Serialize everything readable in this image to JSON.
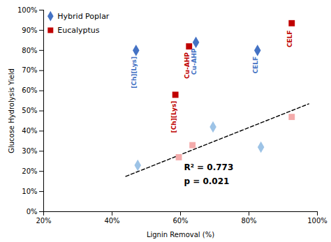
{
  "chart_data": {
    "type": "scatter",
    "xlabel": "Lignin Removal (%)",
    "ylabel": "Glucose Hydrolysis Yield",
    "xlim": [
      0.2,
      1.0
    ],
    "ylim": [
      0.0,
      1.0
    ],
    "xticks": [
      {
        "value": 0.2,
        "label": "20%"
      },
      {
        "value": 0.4,
        "label": "40%"
      },
      {
        "value": 0.6,
        "label": "60%"
      },
      {
        "value": 0.8,
        "label": "80%"
      },
      {
        "value": 1.0,
        "label": "100%"
      }
    ],
    "yticks": [
      {
        "value": 0.0,
        "label": "0%"
      },
      {
        "value": 0.1,
        "label": "10%"
      },
      {
        "value": 0.2,
        "label": "20%"
      },
      {
        "value": 0.3,
        "label": "30%"
      },
      {
        "value": 0.4,
        "label": "40%"
      },
      {
        "value": 0.5,
        "label": "50%"
      },
      {
        "value": 0.6,
        "label": "60%"
      },
      {
        "value": 0.7,
        "label": "70%"
      },
      {
        "value": 0.8,
        "label": "80%"
      },
      {
        "value": 0.9,
        "label": "90%"
      },
      {
        "value": 1.0,
        "label": "100%"
      }
    ],
    "grid": false,
    "legend": "upper left",
    "series": [
      {
        "name": "Hybrid Poplar",
        "color": "#4472C4",
        "marker": "diamond",
        "x": [
          0.47,
          0.645,
          0.825
        ],
        "values": [
          0.8,
          0.84,
          0.8
        ]
      },
      {
        "color": "#9DC3E6",
        "marker": "diamond",
        "x": [
          0.475,
          0.695,
          0.835
        ],
        "values": [
          0.23,
          0.42,
          0.32
        ]
      },
      {
        "name": "Eucalyptus",
        "color": "#C00000",
        "marker": "square",
        "x": [
          0.585,
          0.625,
          0.925
        ],
        "values": [
          0.58,
          0.82,
          0.935
        ]
      },
      {
        "color": "#F4ABAB",
        "marker": "square",
        "x": [
          0.595,
          0.635,
          0.925
        ],
        "values": [
          0.27,
          0.33,
          0.47
        ]
      },
      {
        "type": "line",
        "color": "black",
        "line_style": "dashed",
        "x": [
          0.44,
          0.975
        ],
        "values": [
          0.175,
          0.535
        ]
      }
    ],
    "annotations": [
      {
        "text": "R² = 0.773",
        "x": 0.61,
        "y": 0.205
      },
      {
        "text": "p = 0.021",
        "x": 0.61,
        "y": 0.135
      }
    ],
    "point_labels": [
      {
        "x": 0.465,
        "y": 0.77,
        "text": "[Ch][Lys]",
        "color": "#4472C4"
      },
      {
        "x": 0.64,
        "y": 0.81,
        "text": "Cu-AHP",
        "color": "#4472C4"
      },
      {
        "x": 0.82,
        "y": 0.77,
        "text": "CELF",
        "color": "#4472C4"
      },
      {
        "x": 0.58,
        "y": 0.55,
        "text": "[Ch][Lys]",
        "color": "#C00000"
      },
      {
        "x": 0.62,
        "y": 0.79,
        "text": "Cu-AHP",
        "color": "#C00000"
      },
      {
        "x": 0.92,
        "y": 0.9,
        "text": "CELF",
        "color": "#C00000"
      }
    ]
  }
}
